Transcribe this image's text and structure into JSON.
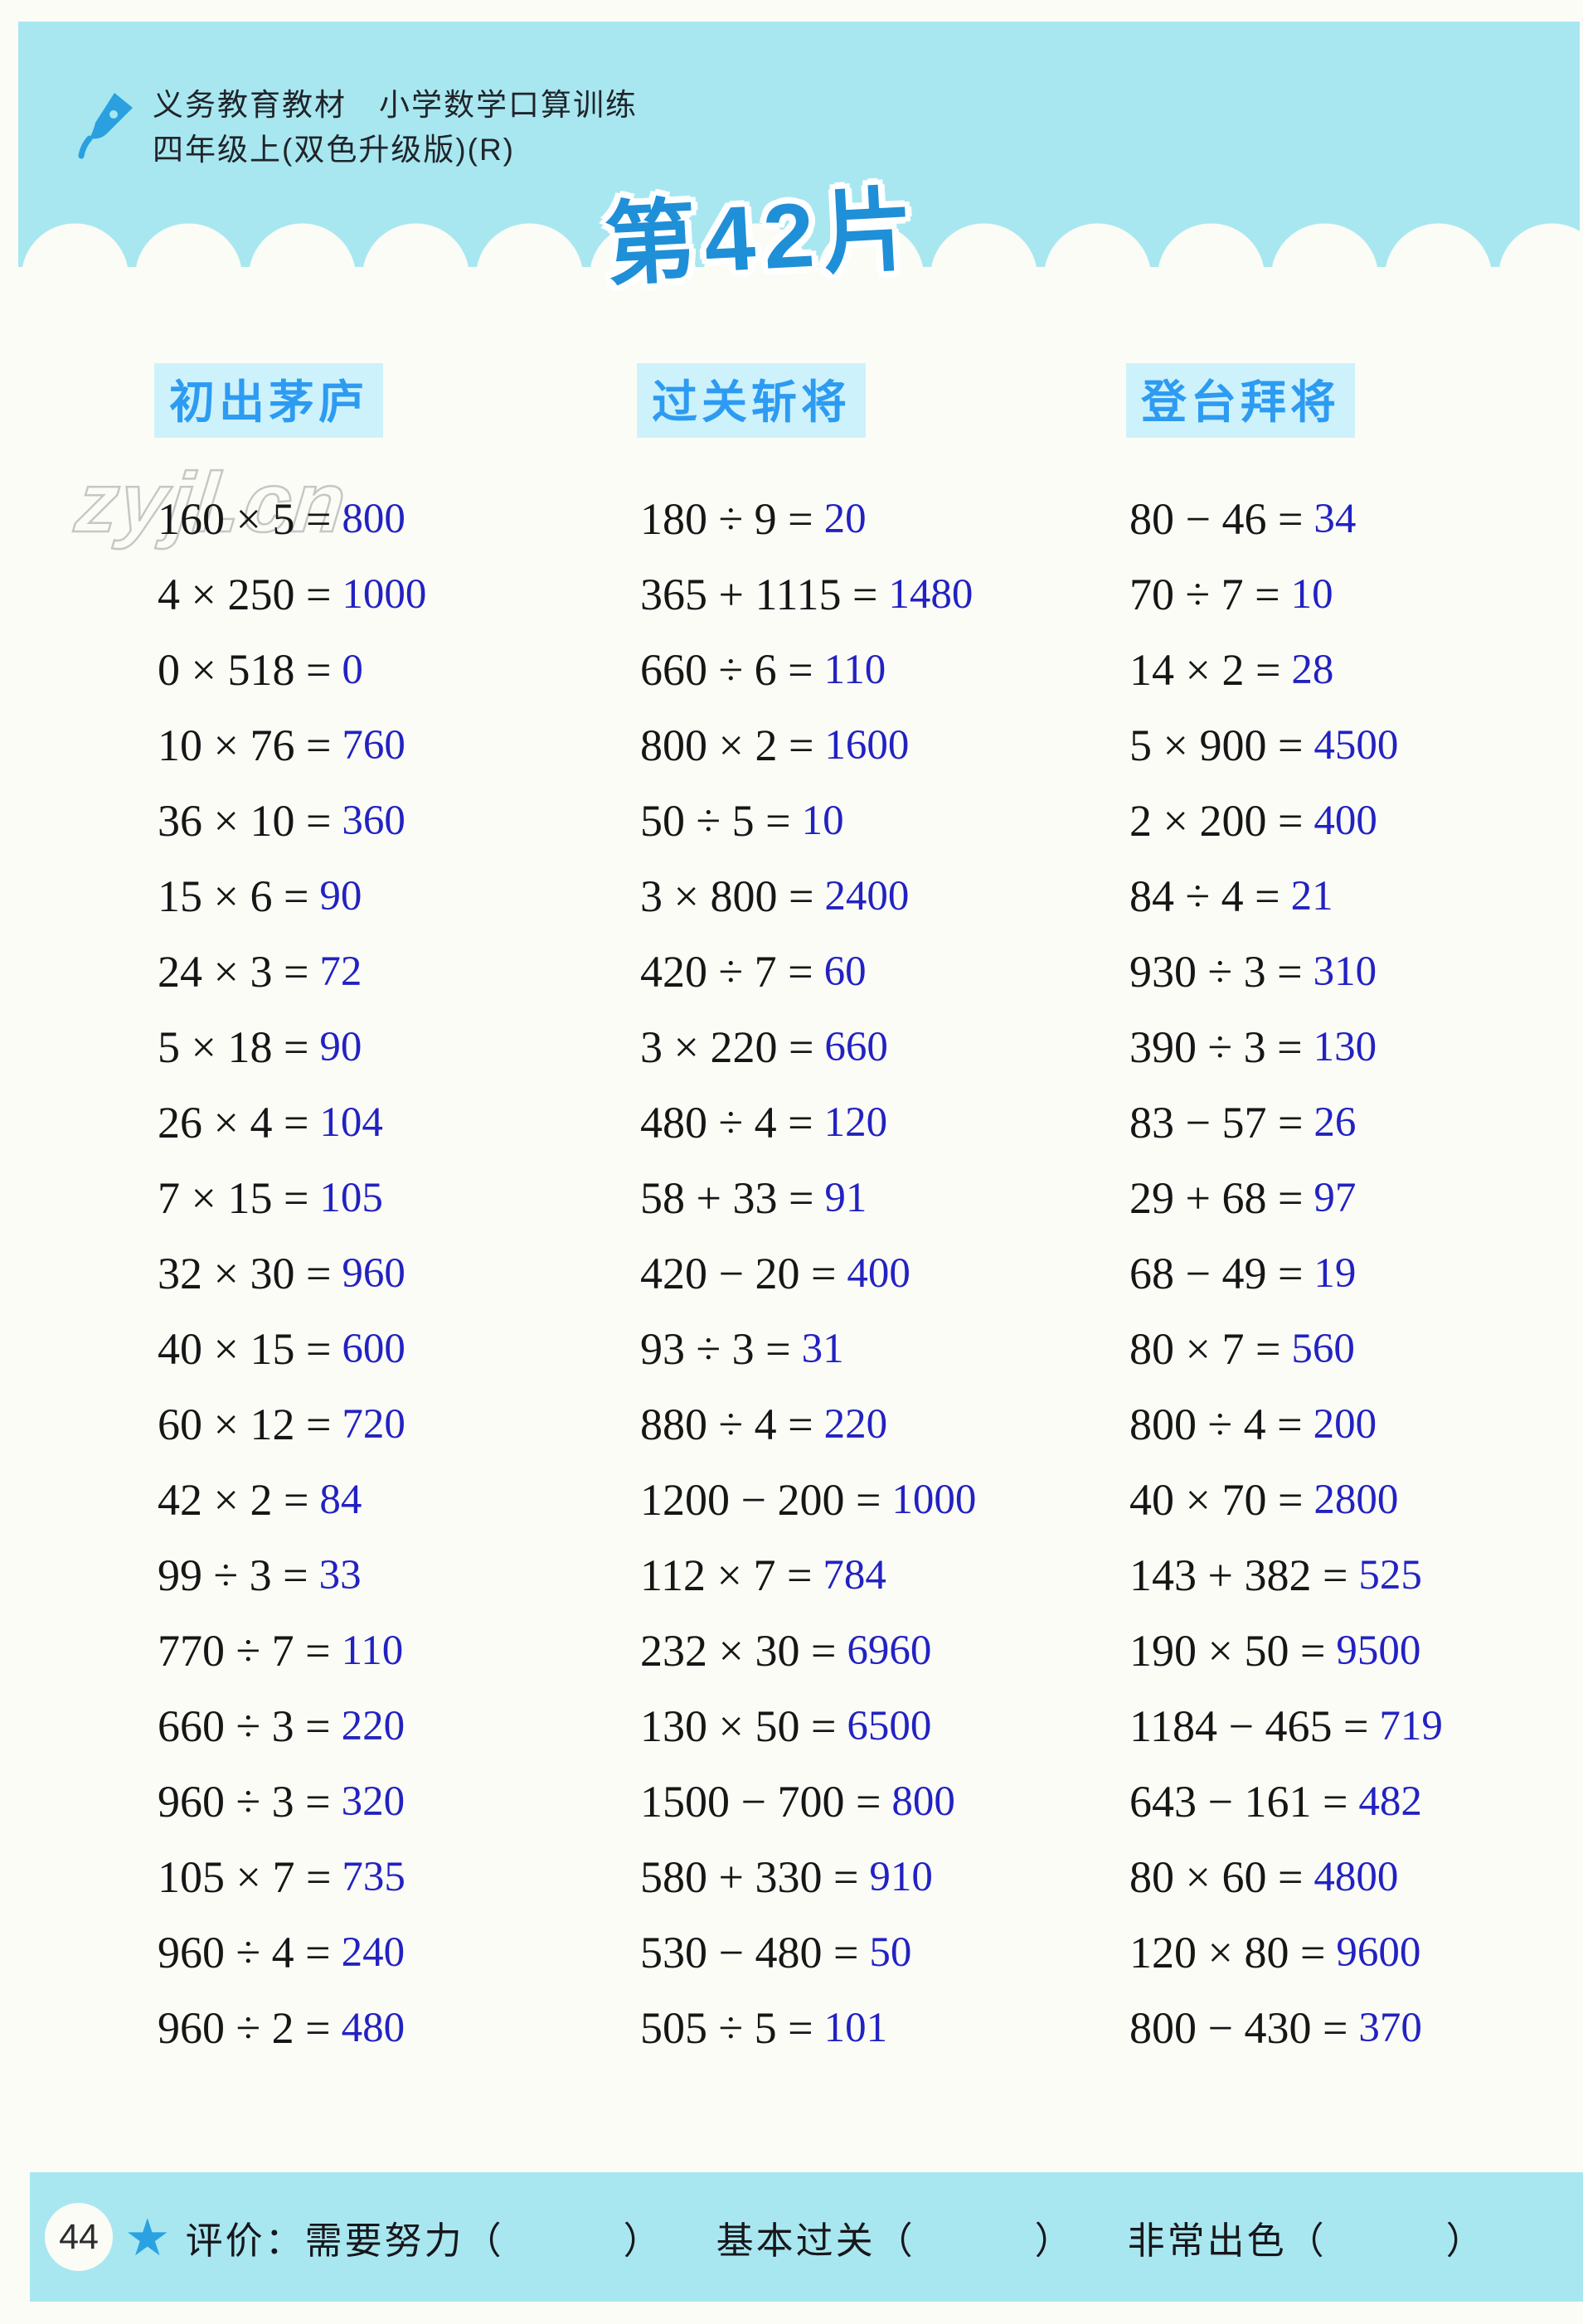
{
  "header": {
    "line1": "义务教育教材　小学数学口算训练",
    "line2": "四年级上(双色升级版)(R)"
  },
  "title": "第42片",
  "watermark": "zyjl.cn",
  "colors": {
    "header_band": "#a8e7f0",
    "column_header_text": "#2d9bf2",
    "column_header_bg": "#cdf2fb",
    "title_blue": "#1f8fd7",
    "answer_blue": "#2222c2",
    "problem_black": "#161616"
  },
  "columns": [
    {
      "header": "初出茅庐",
      "problems": [
        {
          "lhs": "160 × 5 =",
          "ans": "800"
        },
        {
          "lhs": "4 × 250 =",
          "ans": "1000"
        },
        {
          "lhs": "0 × 518 =",
          "ans": "0"
        },
        {
          "lhs": "10 × 76 =",
          "ans": "760"
        },
        {
          "lhs": "36 × 10 =",
          "ans": "360"
        },
        {
          "lhs": "15 × 6 =",
          "ans": "90"
        },
        {
          "lhs": "24 × 3 =",
          "ans": "72"
        },
        {
          "lhs": "5 × 18 =",
          "ans": "90"
        },
        {
          "lhs": "26 × 4 =",
          "ans": "104"
        },
        {
          "lhs": "7 × 15 =",
          "ans": "105"
        },
        {
          "lhs": "32 × 30 =",
          "ans": "960"
        },
        {
          "lhs": "40 × 15 =",
          "ans": "600"
        },
        {
          "lhs": "60 × 12 =",
          "ans": "720"
        },
        {
          "lhs": "42 × 2 =",
          "ans": "84"
        },
        {
          "lhs": "99 ÷ 3 =",
          "ans": "33"
        },
        {
          "lhs": "770 ÷ 7 =",
          "ans": "110"
        },
        {
          "lhs": "660 ÷ 3 =",
          "ans": "220"
        },
        {
          "lhs": "960 ÷ 3 =",
          "ans": "320"
        },
        {
          "lhs": "105 × 7 =",
          "ans": "735"
        },
        {
          "lhs": "960 ÷ 4 =",
          "ans": "240"
        },
        {
          "lhs": "960 ÷ 2 =",
          "ans": "480"
        }
      ]
    },
    {
      "header": "过关斩将",
      "problems": [
        {
          "lhs": "180 ÷ 9 =",
          "ans": "20"
        },
        {
          "lhs": "365 + 1115 =",
          "ans": "1480"
        },
        {
          "lhs": "660 ÷ 6 =",
          "ans": "110"
        },
        {
          "lhs": "800 × 2 =",
          "ans": "1600"
        },
        {
          "lhs": "50 ÷ 5 =",
          "ans": "10"
        },
        {
          "lhs": "3 × 800 =",
          "ans": "2400"
        },
        {
          "lhs": "420 ÷ 7 =",
          "ans": "60"
        },
        {
          "lhs": "3 × 220 =",
          "ans": "660"
        },
        {
          "lhs": "480 ÷ 4 =",
          "ans": "120"
        },
        {
          "lhs": "58 + 33 =",
          "ans": "91"
        },
        {
          "lhs": "420 − 20 =",
          "ans": "400"
        },
        {
          "lhs": "93 ÷ 3 =",
          "ans": "31"
        },
        {
          "lhs": "880 ÷ 4 =",
          "ans": "220"
        },
        {
          "lhs": "1200 − 200 =",
          "ans": "1000"
        },
        {
          "lhs": "112 × 7 =",
          "ans": "784"
        },
        {
          "lhs": "232 × 30 =",
          "ans": "6960"
        },
        {
          "lhs": "130 × 50 =",
          "ans": "6500"
        },
        {
          "lhs": "1500 − 700 =",
          "ans": "800"
        },
        {
          "lhs": "580 + 330 =",
          "ans": "910"
        },
        {
          "lhs": "530 − 480 =",
          "ans": "50"
        },
        {
          "lhs": "505 ÷ 5 =",
          "ans": "101"
        }
      ]
    },
    {
      "header": "登台拜将",
      "problems": [
        {
          "lhs": "80 − 46 =",
          "ans": "34"
        },
        {
          "lhs": "70 ÷ 7 =",
          "ans": "10"
        },
        {
          "lhs": "14 × 2 =",
          "ans": "28"
        },
        {
          "lhs": "5 × 900 =",
          "ans": "4500"
        },
        {
          "lhs": "2 × 200 =",
          "ans": "400"
        },
        {
          "lhs": "84 ÷ 4 =",
          "ans": "21"
        },
        {
          "lhs": "930 ÷ 3 =",
          "ans": "310"
        },
        {
          "lhs": "390 ÷ 3 =",
          "ans": "130"
        },
        {
          "lhs": "83 − 57 =",
          "ans": "26"
        },
        {
          "lhs": "29 + 68 =",
          "ans": "97"
        },
        {
          "lhs": "68 − 49 =",
          "ans": "19"
        },
        {
          "lhs": "80 × 7 =",
          "ans": "560"
        },
        {
          "lhs": "800 ÷ 4 =",
          "ans": "200"
        },
        {
          "lhs": "40 × 70 =",
          "ans": "2800"
        },
        {
          "lhs": "143 + 382 =",
          "ans": "525"
        },
        {
          "lhs": "190 × 50 =",
          "ans": "9500"
        },
        {
          "lhs": "1184 − 465 =",
          "ans": "719"
        },
        {
          "lhs": "643 − 161 =",
          "ans": "482"
        },
        {
          "lhs": "80 × 60 =",
          "ans": "4800"
        },
        {
          "lhs": "120 × 80 =",
          "ans": "9600"
        },
        {
          "lhs": "800 − 430 =",
          "ans": "370"
        }
      ]
    }
  ],
  "footer": {
    "page": "44",
    "label": "评价：",
    "options": [
      {
        "label": "需要努力",
        "blank": "（　　　）"
      },
      {
        "label": "基本过关",
        "blank": "（　　　）"
      },
      {
        "label": "非常出色",
        "blank": "（　　　）"
      }
    ]
  }
}
